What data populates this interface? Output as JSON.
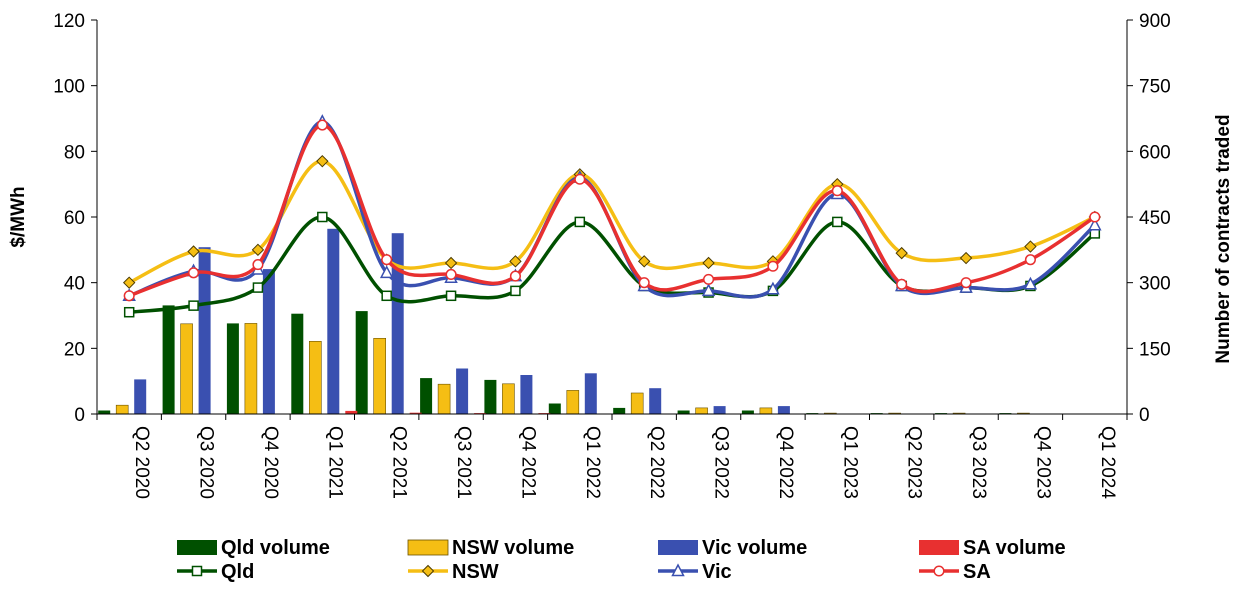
{
  "chart_data": {
    "type": "bar+line",
    "categories": [
      "Q2 2020",
      "Q3 2020",
      "Q4 2020",
      "Q1 2021",
      "Q2 2021",
      "Q3 2021",
      "Q4 2021",
      "Q1 2022",
      "Q2 2022",
      "Q3 2022",
      "Q4 2022",
      "Q1 2023",
      "Q2 2023",
      "Q3 2023",
      "Q4 2023",
      "Q1 2024"
    ],
    "y_left": {
      "label": "$/MWh",
      "min": 0,
      "max": 120,
      "ticks": [
        "0",
        "20",
        "40",
        "60",
        "80",
        "100",
        "120"
      ]
    },
    "y_right": {
      "label": "Number of contracts traded",
      "min": 0,
      "max": 900,
      "ticks": [
        "0",
        "150",
        "300",
        "450",
        "600",
        "750",
        "900"
      ]
    },
    "bar_series": [
      {
        "name": "Qld volume",
        "color": "#005000",
        "axis": "right",
        "values": [
          8,
          248,
          207,
          229,
          235,
          82,
          78,
          24,
          14,
          8,
          8,
          2,
          2,
          2,
          2,
          0
        ]
      },
      {
        "name": "NSW volume",
        "color": "#F5BE14",
        "axis": "right",
        "values": [
          20,
          206,
          207,
          166,
          173,
          68,
          69,
          54,
          48,
          14,
          14,
          2,
          2,
          2,
          2,
          0
        ]
      },
      {
        "name": "Vic volume",
        "color": "#3A50B0",
        "axis": "right",
        "values": [
          79,
          381,
          331,
          423,
          413,
          104,
          89,
          93,
          59,
          18,
          18,
          0,
          0,
          0,
          0,
          0
        ]
      },
      {
        "name": "SA volume",
        "color": "#E83030",
        "axis": "right",
        "values": [
          0,
          0,
          0,
          7,
          3,
          2,
          2,
          0,
          0,
          0,
          0,
          0,
          0,
          0,
          0,
          0
        ]
      }
    ],
    "line_series": [
      {
        "name": "Qld",
        "color": "#005000",
        "marker": "square",
        "axis": "left",
        "values": [
          31,
          33,
          38.5,
          60,
          36,
          36,
          37.5,
          58.5,
          39,
          37,
          37.5,
          58.5,
          39,
          38.5,
          39,
          55
        ]
      },
      {
        "name": "NSW",
        "color": "#F5BE14",
        "marker": "diamond",
        "axis": "left",
        "values": [
          40,
          49.5,
          50,
          77,
          47,
          46,
          46.5,
          73,
          46.5,
          46,
          46.5,
          70,
          49,
          47.5,
          51,
          60
        ]
      },
      {
        "name": "Vic",
        "color": "#3A50B0",
        "marker": "triangle",
        "axis": "left",
        "values": [
          36,
          43.5,
          44,
          89,
          43,
          41.5,
          42,
          72,
          39,
          37.5,
          38,
          67,
          39,
          38.5,
          39.5,
          57.5
        ]
      },
      {
        "name": "SA",
        "color": "#E83030",
        "marker": "circle",
        "axis": "left",
        "values": [
          36,
          43,
          45.5,
          88,
          47,
          42.5,
          42,
          71.5,
          40,
          41,
          45,
          68,
          39.5,
          40,
          47,
          60
        ]
      }
    ],
    "legend": {
      "placement": "bottom",
      "row1": [
        "Qld volume",
        "NSW volume",
        "Vic volume",
        "SA volume"
      ],
      "row2": [
        "Qld",
        "NSW",
        "Vic",
        "SA"
      ]
    },
    "grid": false
  }
}
